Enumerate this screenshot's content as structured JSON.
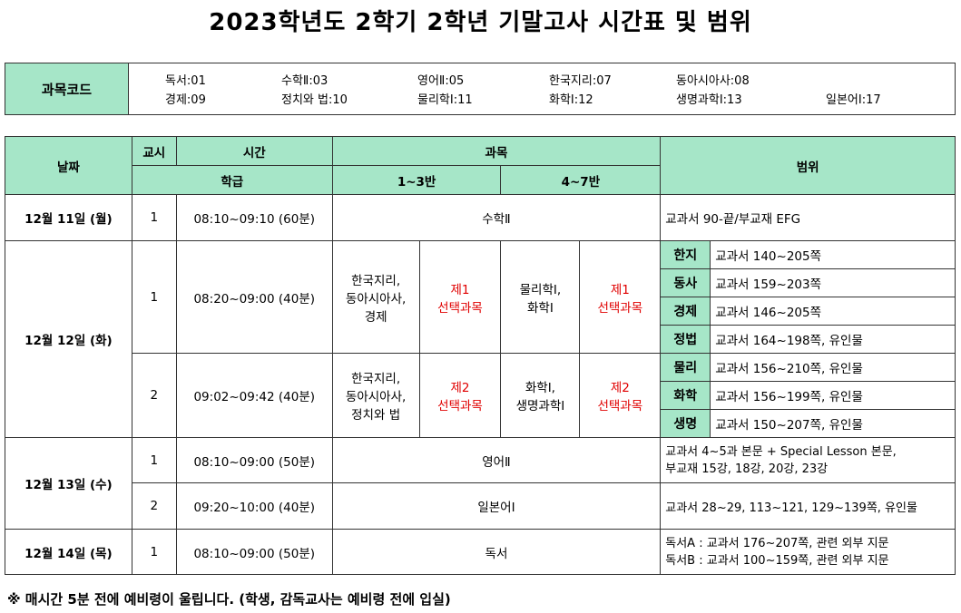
{
  "title": "2023학년도 2학기 2학년 기말고사 시간표 및 범위",
  "codes": {
    "label": "과목코드",
    "row1": [
      "독서:01",
      "수학Ⅱ:03",
      "영어Ⅱ:05",
      "한국지리:07",
      "동아시아사:08",
      ""
    ],
    "row2": [
      "경제:09",
      "정치와 법:10",
      "물리학Ⅰ:11",
      "화학Ⅰ:12",
      "생명과학Ⅰ:13",
      "일본어Ⅰ:17"
    ]
  },
  "header": {
    "date": "날짜",
    "period": "교시",
    "time": "시간",
    "grade": "학급",
    "subject": "과목",
    "class1": "1~3반",
    "class2": "4~7반",
    "scope": "범위"
  },
  "rows": {
    "d1": {
      "date": "12월 11일 (월)",
      "period": "1",
      "time": "08:10~09:10 (60분)",
      "subject": "수학Ⅱ",
      "scope": "교과서 90-끝/부교재 EFG"
    },
    "d2": {
      "date": "12월 12일 (화)",
      "p1": {
        "period": "1",
        "time": "08:20~09:00 (40분)",
        "a_l1": "한국지리,",
        "a_l2": "동아시아사,",
        "a_l3": "경제",
        "a_sel_l1": "제1",
        "a_sel_l2": "선택과목",
        "b_l1": "물리학Ⅰ,",
        "b_l2": "화학Ⅰ",
        "b_sel_l1": "제1",
        "b_sel_l2": "선택과목"
      },
      "p2": {
        "period": "2",
        "time": "09:02~09:42 (40분)",
        "a_l1": "한국지리,",
        "a_l2": "동아시아사,",
        "a_l3": "정치와 법",
        "a_sel_l1": "제2",
        "a_sel_l2": "선택과목",
        "b_l1": "화학Ⅰ,",
        "b_l2": "생명과학Ⅰ",
        "b_sel_l1": "제2",
        "b_sel_l2": "선택과목"
      },
      "scopes": [
        {
          "label": "한지",
          "text": "교과서 140~205쪽"
        },
        {
          "label": "동사",
          "text": "교과서 159~203쪽"
        },
        {
          "label": "경제",
          "text": "교과서 146~205쪽"
        },
        {
          "label": "정법",
          "text": "교과서 164~198쪽, 유인물"
        },
        {
          "label": "물리",
          "text": "교과서 156~210쪽, 유인물"
        },
        {
          "label": "화학",
          "text": "교과서 156~199쪽, 유인물"
        },
        {
          "label": "생명",
          "text": "교과서 150~207쪽, 유인물"
        }
      ]
    },
    "d3": {
      "date": "12월 13일 (수)",
      "p1": {
        "period": "1",
        "time": "08:10~09:00 (50분)",
        "subject": "영어Ⅱ",
        "scope_l1": "교과서 4~5과 본문 + Special Lesson 본문,",
        "scope_l2": "부교재 15강, 18강, 20강, 23강"
      },
      "p2": {
        "period": "2",
        "time": "09:20~10:00 (40분)",
        "subject": "일본어Ⅰ",
        "scope": "교과서 28~29, 113~121, 129~139쪽, 유인물"
      }
    },
    "d4": {
      "date": "12월 14일 (목)",
      "period": "1",
      "time": "08:10~09:00 (50분)",
      "subject": "독서",
      "scope_l1": "독서A : 교과서 176~207쪽, 관련 외부 지문",
      "scope_l2": "독서B : 교과서 100~159쪽, 관련 외부 지문"
    }
  },
  "note": "※ 매시간 5분 전에 예비령이 울립니다. (학생, 감독교사는 예비령 전에 입실)"
}
